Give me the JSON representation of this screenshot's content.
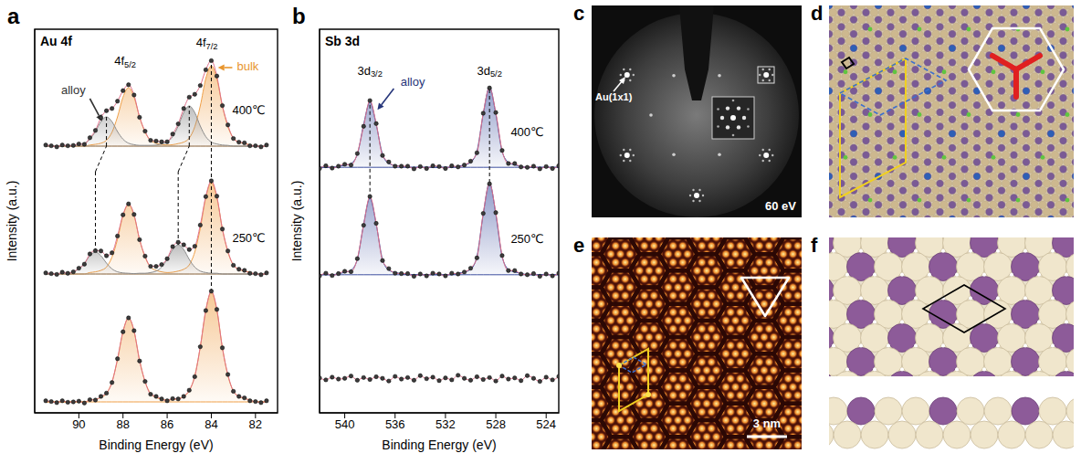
{
  "chart_data": [
    {
      "letter": "a",
      "type": "line",
      "title": "Au 4f",
      "x_label": "Binding Energy (eV)",
      "y_label": "Intensity (a.u.)",
      "tick_labels": "x",
      "xlim": [
        92,
        81
      ],
      "xticks": [
        90,
        88,
        86,
        84,
        82
      ],
      "ylim": [
        0,
        10.5
      ],
      "x": [
        81.5,
        81.75,
        82,
        82.25,
        82.5,
        82.75,
        83,
        83.25,
        83.5,
        83.75,
        84,
        84.25,
        84.5,
        84.75,
        85,
        85.25,
        85.5,
        85.75,
        86,
        86.25,
        86.5,
        86.75,
        87,
        87.25,
        87.5,
        87.75,
        88,
        88.25,
        88.5,
        88.75,
        89,
        89.25,
        89.5,
        89.75,
        90,
        90.25,
        90.5,
        90.75,
        91,
        91.25,
        91.5
      ],
      "series": [
        {
          "type": "area",
          "color": "#f0a048",
          "baseline": 0.3,
          "values": [
            0.3,
            0.3,
            0.3,
            0.36,
            0.39,
            0.45,
            0.6,
            1.02,
            1.8,
            2.82,
            3.3,
            2.82,
            1.8,
            1.02,
            0.6,
            0.45,
            0.39,
            0.36,
            0.35,
            0.37,
            0.42,
            0.53,
            0.85,
            1.45,
            2.23,
            2.6,
            2.23,
            1.45,
            0.85,
            0.53,
            0.42,
            0.37,
            0.35,
            0.3,
            0.3,
            0.3,
            0.3,
            0.3,
            0.3,
            0.3,
            0.3
          ]
        },
        {
          "type": "line",
          "color": "#e0708a",
          "marker": "circle",
          "values": [
            0.33,
            0.28,
            0.31,
            0.33,
            0.41,
            0.45,
            0.59,
            1.05,
            1.78,
            2.83,
            3.33,
            2.8,
            1.81,
            0.99,
            0.62,
            0.45,
            0.38,
            0.39,
            0.33,
            0.38,
            0.45,
            0.51,
            0.86,
            1.42,
            2.25,
            2.6,
            2.22,
            1.48,
            0.83,
            0.54,
            0.45,
            0.35,
            0.36,
            0.27,
            0.32,
            0.3,
            0.29,
            0.33,
            0.28,
            0.31,
            0.33
          ]
        },
        {
          "type": "area",
          "color": "#f0a048",
          "baseline": 3.8,
          "values": [
            3.8,
            3.8,
            3.8,
            3.85,
            3.88,
            3.93,
            4.05,
            4.4,
            5.05,
            5.9,
            6.3,
            5.9,
            5.05,
            4.4,
            4.05,
            3.93,
            3.88,
            3.85,
            3.84,
            3.86,
            3.9,
            3.99,
            4.26,
            4.75,
            5.4,
            5.7,
            5.4,
            4.75,
            4.26,
            3.99,
            3.9,
            3.86,
            3.84,
            3.8,
            3.8,
            3.8,
            3.8,
            3.8,
            3.8,
            3.8,
            3.8
          ]
        },
        {
          "type": "area",
          "color": "#8c8c8c",
          "baseline": 3.8,
          "values": [
            3.8,
            3.8,
            3.8,
            3.8,
            3.8,
            3.8,
            3.8,
            3.8,
            3.8,
            3.82,
            3.82,
            3.84,
            3.88,
            3.99,
            4.2,
            4.47,
            4.6,
            4.47,
            4.2,
            3.99,
            3.88,
            3.84,
            3.82,
            3.82,
            3.81,
            3.82,
            3.83,
            3.86,
            3.94,
            4.1,
            4.3,
            4.4,
            4.3,
            4.1,
            3.94,
            3.86,
            3.83,
            3.82,
            3.81,
            3.8,
            3.8
          ]
        },
        {
          "type": "line",
          "color": "#e0708a",
          "marker": "circle",
          "values": [
            3.83,
            3.78,
            3.81,
            3.82,
            3.9,
            3.93,
            4.04,
            4.43,
            5.03,
            5.93,
            6.35,
            5.92,
            5.14,
            4.56,
            4.47,
            4.6,
            4.67,
            4.55,
            4.22,
            4.06,
            4.01,
            4.01,
            4.29,
            4.74,
            5.43,
            5.72,
            5.42,
            4.84,
            4.38,
            4.3,
            4.43,
            4.44,
            4.35,
            4.07,
            3.96,
            3.86,
            3.82,
            3.85,
            3.79,
            3.81,
            3.83
          ]
        },
        {
          "type": "area",
          "color": "#f0a048",
          "baseline": 7.3,
          "values": [
            7.3,
            7.3,
            7.3,
            7.34,
            7.37,
            7.41,
            7.52,
            7.83,
            8.4,
            9.15,
            9.5,
            9.15,
            8.4,
            7.83,
            7.52,
            7.41,
            7.37,
            7.34,
            7.33,
            7.35,
            7.38,
            7.46,
            7.68,
            8.1,
            8.64,
            8.9,
            8.64,
            8.1,
            7.68,
            7.46,
            7.38,
            7.35,
            7.33,
            7.3,
            7.3,
            7.3,
            7.3,
            7.3,
            7.3,
            7.3,
            7.3
          ]
        },
        {
          "type": "area",
          "color": "#8c8c8c",
          "baseline": 7.3,
          "values": [
            7.3,
            7.3,
            7.3,
            7.3,
            7.3,
            7.3,
            7.3,
            7.32,
            7.33,
            7.36,
            7.41,
            7.56,
            7.85,
            8.22,
            8.4,
            8.22,
            7.85,
            7.56,
            7.41,
            7.36,
            7.33,
            7.32,
            7.32,
            7.32,
            7.34,
            7.38,
            7.49,
            7.7,
            7.97,
            8.1,
            7.97,
            7.7,
            7.49,
            7.38,
            7.34,
            7.32,
            7.32,
            7.3,
            7.3,
            7.3,
            7.3
          ]
        },
        {
          "type": "line",
          "color": "#e0708a",
          "marker": "circle",
          "values": [
            7.33,
            7.28,
            7.31,
            7.31,
            7.39,
            7.41,
            7.51,
            7.88,
            8.41,
            9.22,
            9.64,
            9.39,
            8.96,
            8.72,
            8.64,
            8.33,
            7.91,
            7.63,
            7.42,
            7.42,
            7.44,
            7.46,
            7.71,
            8.09,
            8.7,
            8.98,
            8.82,
            8.53,
            8.33,
            8.27,
            8.08,
            7.73,
            7.53,
            7.35,
            7.36,
            7.32,
            7.31,
            7.33,
            7.28,
            7.31,
            7.33
          ]
        }
      ],
      "annotations": [
        {
          "text": "4f5/2",
          "x": 87.9,
          "y": 9.6,
          "color": "#000000"
        },
        {
          "text": "4f7/2",
          "x": 84.2,
          "y": 10.1,
          "color": "#000000"
        },
        {
          "text": "alloy",
          "x": 90.25,
          "y": 8.8,
          "color": "#333333",
          "arrow_from": [
            89.5,
            8.6
          ],
          "arrow_to": [
            88.95,
            7.98
          ]
        },
        {
          "text": "bulk",
          "x": 82.35,
          "y": 9.45,
          "color": "#e8962e",
          "arrow_from": [
            83.05,
            9.45
          ],
          "arrow_to": [
            83.7,
            9.45
          ]
        },
        {
          "text": "400℃",
          "x": 82.3,
          "y": 8.25,
          "color": "#000000"
        },
        {
          "text": "250℃",
          "x": 82.3,
          "y": 4.75,
          "color": "#000000"
        }
      ],
      "guide_lines": [
        [
          [
            84,
            3.3
          ],
          [
            84,
            9.6
          ]
        ],
        [
          [
            85.5,
            4.6
          ],
          [
            85.5,
            6.6
          ],
          [
            85,
            7.3
          ],
          [
            85,
            8.4
          ]
        ],
        [
          [
            89.25,
            4.4
          ],
          [
            89.25,
            6.6
          ],
          [
            88.75,
            7.3
          ],
          [
            88.75,
            8.1
          ]
        ]
      ]
    },
    {
      "letter": "b",
      "type": "line",
      "title": "Sb 3d",
      "x_label": "Binding Energy (eV)",
      "y_label": "Intensity (a.u.)",
      "tick_labels": "x",
      "xlim": [
        542,
        523
      ],
      "xticks": [
        540,
        536,
        532,
        528,
        524
      ],
      "ylim": [
        0,
        10
      ],
      "x": [
        523,
        523.5,
        524,
        524.5,
        525,
        525.5,
        526,
        526.5,
        527,
        527.5,
        528,
        528.5,
        529,
        529.5,
        530,
        530.5,
        531,
        531.5,
        532,
        532.5,
        533,
        533.5,
        534,
        534.5,
        535,
        535.5,
        536,
        536.5,
        537,
        537.5,
        538,
        538.5,
        539,
        539.5,
        540,
        540.5,
        541,
        541.5,
        542
      ],
      "series": [
        {
          "type": "line",
          "color": "#e0708a",
          "marker": "circle",
          "values": [
            0.95,
            0.86,
            0.93,
            0.82,
            0.9,
            0.97,
            0.84,
            0.91,
            0.88,
            0.96,
            0.83,
            0.92,
            0.87,
            0.94,
            0.85,
            0.9,
            0.98,
            0.86,
            0.91,
            0.84,
            0.93,
            0.89,
            0.97,
            0.85,
            0.92,
            0.88,
            0.95,
            0.83,
            0.9,
            0.94,
            0.87,
            0.92,
            0.85,
            0.96,
            0.9,
            0.88,
            0.93,
            0.86,
            0.91
          ]
        },
        {
          "type": "area",
          "color": "#3d4f9f",
          "baseline": 3.6,
          "values": [
            3.6,
            3.6,
            3.6,
            3.6,
            3.6,
            3.6,
            3.64,
            3.67,
            3.74,
            4.08,
            5.18,
            6.0,
            5.18,
            4.08,
            3.74,
            3.67,
            3.64,
            3.6,
            3.6,
            3.6,
            3.6,
            3.6,
            3.6,
            3.6,
            3.6,
            3.63,
            3.66,
            3.72,
            4.0,
            4.92,
            5.6,
            4.92,
            4.0,
            3.72,
            3.66,
            3.63,
            3.6,
            3.6,
            3.6
          ]
        },
        {
          "type": "line",
          "color": "#e0708a",
          "marker": "circle",
          "values": [
            3.64,
            3.57,
            3.62,
            3.56,
            3.63,
            3.6,
            3.62,
            3.71,
            3.71,
            4.1,
            5.22,
            5.97,
            5.2,
            4.04,
            3.77,
            3.67,
            3.62,
            3.64,
            3.57,
            3.62,
            3.64,
            3.57,
            3.62,
            3.56,
            3.63,
            3.63,
            3.64,
            3.76,
            3.97,
            4.94,
            5.64,
            4.89,
            4.02,
            3.68,
            3.69,
            3.63,
            3.58,
            3.64,
            3.57
          ]
        },
        {
          "type": "area",
          "color": "#3d4f9f",
          "baseline": 6.4,
          "values": [
            6.4,
            6.4,
            6.4,
            6.4,
            6.4,
            6.4,
            6.43,
            6.46,
            6.53,
            6.82,
            7.79,
            8.5,
            7.79,
            6.82,
            6.53,
            6.46,
            6.43,
            6.4,
            6.4,
            6.4,
            6.4,
            6.4,
            6.4,
            6.4,
            6.4,
            6.43,
            6.45,
            6.5,
            6.74,
            7.52,
            8.1,
            7.52,
            6.74,
            6.5,
            6.45,
            6.43,
            6.4,
            6.4,
            6.4
          ]
        },
        {
          "type": "line",
          "color": "#e0708a",
          "marker": "circle",
          "values": [
            6.44,
            6.37,
            6.42,
            6.36,
            6.43,
            6.4,
            6.41,
            6.5,
            6.5,
            6.84,
            7.83,
            8.47,
            7.81,
            6.78,
            6.56,
            6.46,
            6.41,
            6.44,
            6.37,
            6.42,
            6.44,
            6.37,
            6.42,
            6.36,
            6.43,
            6.43,
            6.43,
            6.54,
            6.71,
            7.54,
            8.14,
            7.47,
            6.76,
            6.46,
            6.48,
            6.43,
            6.38,
            6.44,
            6.37
          ]
        }
      ],
      "annotations": [
        {
          "text": "3d3/2",
          "x": 538,
          "y": 8.9,
          "color": "#000000"
        },
        {
          "text": "3d5/2",
          "x": 528.5,
          "y": 8.9,
          "color": "#000000"
        },
        {
          "text": "alloy",
          "x": 534.6,
          "y": 8.6,
          "color": "#26357a",
          "arrow_from": [
            536.1,
            8.45
          ],
          "arrow_to": [
            537.4,
            7.9
          ]
        },
        {
          "text": "400℃",
          "x": 525.5,
          "y": 7.3,
          "color": "#000000"
        },
        {
          "text": "250℃",
          "x": 525.5,
          "y": 4.5,
          "color": "#000000"
        }
      ],
      "guide_lines": [
        [
          [
            538,
            5.6
          ],
          [
            538,
            8.1
          ]
        ],
        [
          [
            528.5,
            6.0
          ],
          [
            528.5,
            8.5
          ]
        ]
      ]
    }
  ],
  "images": [
    {
      "letter": "c",
      "energy_label": "60 eV",
      "spot_label": "Au(1x1)"
    },
    {
      "letter": "d"
    },
    {
      "letter": "e",
      "scale_bar": "3 nm"
    },
    {
      "letter": "f"
    }
  ]
}
